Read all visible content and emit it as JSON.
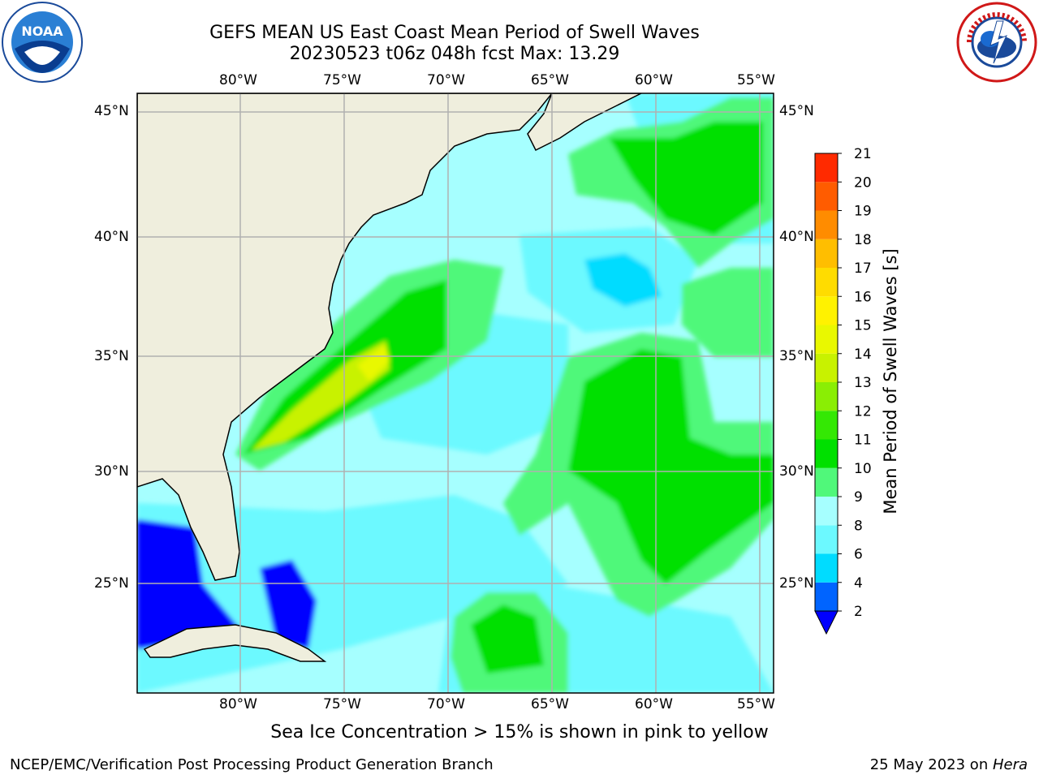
{
  "header": {
    "title_line1": "GEFS MEAN US East Coast Mean Period of Swell Waves",
    "title_line2": "20230523 t06z 048h fcst   Max: 13.29"
  },
  "logos": {
    "left": {
      "icon": "noaa-logo-icon",
      "text": "NOAA"
    },
    "right": {
      "icon": "nws-logo-icon",
      "text": "NATIONAL WEATHER SERVICE"
    }
  },
  "map": {
    "lon_labels": [
      "80°W",
      "75°W",
      "70°W",
      "65°W",
      "60°W",
      "55°W"
    ],
    "lat_labels": [
      "45°N",
      "40°N",
      "35°N",
      "30°N",
      "25°N"
    ],
    "extent": {
      "lon_min": -85,
      "lon_max": -54.4,
      "lat_min": 20.4,
      "lat_max": 45.8
    },
    "land_color": "#efeedd",
    "grid_color": "#b0b0b0"
  },
  "colorbar": {
    "title": "Mean Period of Swell Waves [s]",
    "ticks": [
      "2",
      "4",
      "6",
      "8",
      "9",
      "10",
      "11",
      "12",
      "13",
      "14",
      "15",
      "16",
      "17",
      "18",
      "19",
      "20",
      "21"
    ],
    "colors": [
      "#0064ff",
      "#00dcff",
      "#6cf9ff",
      "#a6ffff",
      "#50f87a",
      "#00e000",
      "#34e804",
      "#8aee04",
      "#c8f200",
      "#e9f800",
      "#fff200",
      "#ffdc00",
      "#ffbe00",
      "#ff8c00",
      "#ff5c00",
      "#ff2a00",
      "#ff0000"
    ],
    "under_color": "#0000ff"
  },
  "footer": {
    "note": "Sea Ice Concentration > 15% is shown in pink to yellow",
    "left": "NCEP/EMC/Verification Post Processing Product Generation Branch",
    "right_date": "25 May 2023 on ",
    "right_host": "Hera"
  }
}
